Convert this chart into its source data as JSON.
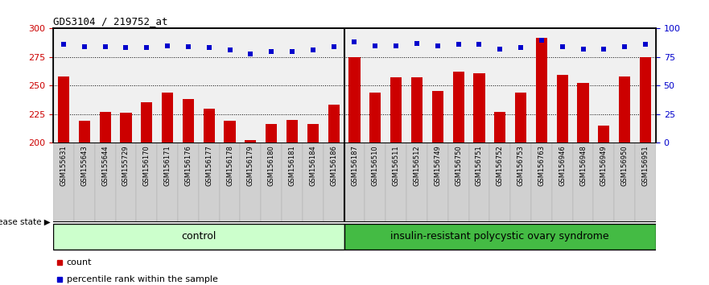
{
  "title": "GDS3104 / 219752_at",
  "samples": [
    "GSM155631",
    "GSM155643",
    "GSM155644",
    "GSM155729",
    "GSM156170",
    "GSM156171",
    "GSM156176",
    "GSM156177",
    "GSM156178",
    "GSM156179",
    "GSM156180",
    "GSM156181",
    "GSM156184",
    "GSM156186",
    "GSM156187",
    "GSM156510",
    "GSM156511",
    "GSM156512",
    "GSM156749",
    "GSM156750",
    "GSM156751",
    "GSM156752",
    "GSM156753",
    "GSM156763",
    "GSM156946",
    "GSM156948",
    "GSM156949",
    "GSM156950",
    "GSM156951"
  ],
  "bar_values": [
    258,
    219,
    227,
    226,
    235,
    244,
    238,
    230,
    219,
    202,
    216,
    220,
    216,
    233,
    275,
    244,
    257,
    257,
    245,
    262,
    261,
    227,
    244,
    292,
    259,
    252,
    215,
    258,
    275
  ],
  "dot_pct": [
    86,
    84,
    84,
    83,
    83,
    85,
    84,
    83,
    81,
    78,
    80,
    80,
    81,
    84,
    88,
    85,
    85,
    87,
    85,
    86,
    86,
    82,
    83,
    90,
    84,
    82,
    82,
    84,
    86
  ],
  "control_count": 14,
  "control_label": "control",
  "disease_label": "insulin-resistant polycystic ovary syndrome",
  "disease_state_label": "disease state",
  "ylim_left": [
    200,
    300
  ],
  "ylim_right": [
    0,
    100
  ],
  "yticks_left": [
    200,
    225,
    250,
    275,
    300
  ],
  "yticks_right": [
    0,
    25,
    50,
    75,
    100
  ],
  "bar_color": "#cc0000",
  "dot_color": "#0000cc",
  "control_bg": "#ccffcc",
  "disease_bg": "#44bb44",
  "tick_bg": "#d0d0d0",
  "plot_bg": "#f0f0f0",
  "legend_count_label": "count",
  "legend_pct_label": "percentile rank within the sample"
}
